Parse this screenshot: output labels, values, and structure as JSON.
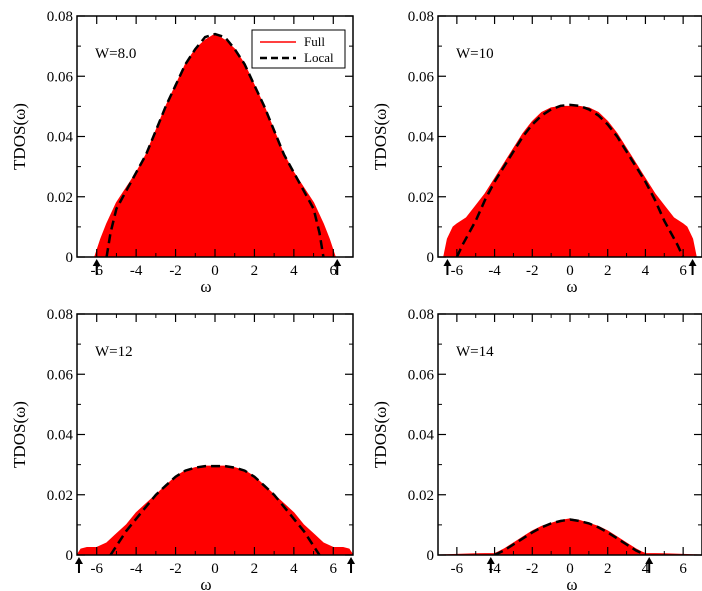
{
  "chart_data": [
    {
      "type": "area",
      "label": "W=8.0",
      "xlabel": "ω",
      "ylabel": "TDOS(ω)",
      "xlim": [
        -7,
        7
      ],
      "ylim": [
        0,
        0.08
      ],
      "xticks": [
        -6,
        -4,
        -2,
        0,
        2,
        4,
        6
      ],
      "yticks": [
        0,
        0.02,
        0.04,
        0.06,
        0.08
      ],
      "ytick_labels": [
        "0",
        "0.02",
        "0.04",
        "0.06",
        "0.08"
      ],
      "arrows_at": [
        -6.0,
        6.2
      ],
      "legend": {
        "position": "top-right",
        "entries": [
          "Full",
          "Local"
        ]
      },
      "series": [
        {
          "name": "Full",
          "style": "filled",
          "color": "#ff0000",
          "x": [
            -6.1,
            -5.8,
            -5.5,
            -5.0,
            -4.5,
            -4.0,
            -3.5,
            -3.0,
            -2.5,
            -2.0,
            -1.5,
            -1.0,
            -0.5,
            0.0,
            0.5,
            1.0,
            1.5,
            2.0,
            2.5,
            3.0,
            3.5,
            4.0,
            4.5,
            5.0,
            5.5,
            5.8,
            6.1
          ],
          "y": [
            0.0,
            0.006,
            0.011,
            0.018,
            0.023,
            0.028,
            0.034,
            0.042,
            0.05,
            0.057,
            0.064,
            0.069,
            0.072,
            0.074,
            0.072,
            0.069,
            0.064,
            0.057,
            0.05,
            0.042,
            0.034,
            0.028,
            0.023,
            0.018,
            0.011,
            0.006,
            0.0
          ]
        },
        {
          "name": "Local",
          "style": "dashed",
          "color": "#000000",
          "x": [
            -5.5,
            -5.3,
            -5.0,
            -4.5,
            -4.0,
            -3.5,
            -3.0,
            -2.5,
            -2.0,
            -1.5,
            -1.0,
            -0.5,
            0.0,
            0.5,
            1.0,
            1.5,
            2.0,
            2.5,
            3.0,
            3.5,
            4.0,
            4.5,
            5.0,
            5.3,
            5.5
          ],
          "y": [
            0.0,
            0.008,
            0.016,
            0.022,
            0.028,
            0.034,
            0.042,
            0.05,
            0.057,
            0.064,
            0.069,
            0.073,
            0.074,
            0.073,
            0.069,
            0.064,
            0.057,
            0.05,
            0.042,
            0.034,
            0.028,
            0.022,
            0.016,
            0.008,
            0.0
          ]
        }
      ]
    },
    {
      "type": "area",
      "label": "W=10",
      "xlabel": "ω",
      "ylabel": "TDOS(ω)",
      "xlim": [
        -7,
        7
      ],
      "ylim": [
        0,
        0.08
      ],
      "xticks": [
        -6,
        -4,
        -2,
        0,
        2,
        4,
        6
      ],
      "yticks": [
        0,
        0.02,
        0.04,
        0.06,
        0.08
      ],
      "ytick_labels": [
        "0",
        "0.02",
        "0.04",
        "0.06",
        "0.08"
      ],
      "arrows_at": [
        -6.5,
        6.5
      ],
      "series": [
        {
          "name": "Full",
          "style": "filled",
          "color": "#ff0000",
          "x": [
            -6.7,
            -6.5,
            -6.2,
            -6.0,
            -5.5,
            -5.0,
            -4.5,
            -4.0,
            -3.5,
            -3.0,
            -2.5,
            -2.0,
            -1.5,
            -1.0,
            -0.5,
            0.0,
            0.5,
            1.0,
            1.5,
            2.0,
            2.5,
            3.0,
            3.5,
            4.0,
            4.5,
            5.0,
            5.5,
            6.0,
            6.2,
            6.5,
            6.7
          ],
          "y": [
            0.0,
            0.006,
            0.01,
            0.011,
            0.013,
            0.017,
            0.021,
            0.026,
            0.031,
            0.036,
            0.041,
            0.045,
            0.048,
            0.0495,
            0.05,
            0.05,
            0.05,
            0.0495,
            0.048,
            0.045,
            0.041,
            0.036,
            0.031,
            0.026,
            0.021,
            0.017,
            0.013,
            0.011,
            0.01,
            0.006,
            0.0
          ]
        },
        {
          "name": "Local",
          "style": "dashed",
          "color": "#000000",
          "x": [
            -6.0,
            -5.7,
            -5.0,
            -4.5,
            -4.0,
            -3.5,
            -3.0,
            -2.5,
            -2.0,
            -1.5,
            -1.0,
            -0.5,
            0.0,
            0.5,
            1.0,
            1.5,
            2.0,
            2.5,
            3.0,
            3.5,
            4.0,
            4.5,
            5.0,
            5.7,
            6.0
          ],
          "y": [
            0.0,
            0.004,
            0.012,
            0.019,
            0.025,
            0.03,
            0.035,
            0.04,
            0.044,
            0.047,
            0.049,
            0.0502,
            0.0505,
            0.0502,
            0.049,
            0.047,
            0.044,
            0.04,
            0.035,
            0.03,
            0.025,
            0.019,
            0.012,
            0.004,
            0.0
          ]
        }
      ]
    },
    {
      "type": "area",
      "label": "W=12",
      "xlabel": "ω",
      "ylabel": "TDOS(ω)",
      "xlim": [
        -7,
        7
      ],
      "ylim": [
        0,
        0.08
      ],
      "xticks": [
        -6,
        -4,
        -2,
        0,
        2,
        4,
        6
      ],
      "yticks": [
        0,
        0.02,
        0.04,
        0.06,
        0.08
      ],
      "ytick_labels": [
        "0",
        "0.02",
        "0.04",
        "0.06",
        "0.08"
      ],
      "arrows_at": [
        -6.9,
        6.9
      ],
      "series": [
        {
          "name": "Full",
          "style": "filled",
          "color": "#ff0000",
          "x": [
            -7.0,
            -6.8,
            -6.5,
            -6.0,
            -5.5,
            -5.0,
            -4.5,
            -4.0,
            -3.5,
            -3.0,
            -2.5,
            -2.0,
            -1.5,
            -1.0,
            -0.5,
            0.0,
            0.5,
            1.0,
            1.5,
            2.0,
            2.5,
            3.0,
            3.5,
            4.0,
            4.5,
            5.0,
            5.5,
            6.0,
            6.5,
            6.8,
            7.0
          ],
          "y": [
            0.0,
            0.002,
            0.0025,
            0.0025,
            0.004,
            0.007,
            0.01,
            0.014,
            0.017,
            0.02,
            0.023,
            0.026,
            0.028,
            0.029,
            0.0295,
            0.0295,
            0.0295,
            0.029,
            0.028,
            0.026,
            0.023,
            0.02,
            0.017,
            0.014,
            0.01,
            0.007,
            0.004,
            0.0025,
            0.0025,
            0.002,
            0.0
          ]
        },
        {
          "name": "Local",
          "style": "dashed",
          "color": "#000000",
          "x": [
            -5.3,
            -5.0,
            -4.5,
            -4.0,
            -3.5,
            -3.0,
            -2.5,
            -2.0,
            -1.5,
            -1.0,
            -0.5,
            0.0,
            0.5,
            1.0,
            1.5,
            2.0,
            2.5,
            3.0,
            3.5,
            4.0,
            4.5,
            5.0,
            5.3
          ],
          "y": [
            0.0,
            0.003,
            0.008,
            0.012,
            0.016,
            0.02,
            0.023,
            0.026,
            0.028,
            0.029,
            0.0295,
            0.0295,
            0.0295,
            0.029,
            0.028,
            0.026,
            0.023,
            0.02,
            0.016,
            0.012,
            0.008,
            0.003,
            0.0
          ]
        }
      ]
    },
    {
      "type": "area",
      "label": "W=14",
      "xlabel": "ω",
      "ylabel": "TDOS(ω)",
      "xlim": [
        -7,
        7
      ],
      "ylim": [
        0,
        0.08
      ],
      "xticks": [
        -6,
        -4,
        -2,
        0,
        2,
        4,
        6
      ],
      "yticks": [
        0,
        0.02,
        0.04,
        0.06,
        0.08
      ],
      "ytick_labels": [
        "0",
        "0.02",
        "0.04",
        "0.06",
        "0.08"
      ],
      "arrows_at": [
        -4.2,
        4.2
      ],
      "series": [
        {
          "name": "Full",
          "style": "filled",
          "color": "#ff0000",
          "x": [
            -7.0,
            -5.0,
            -4.0,
            -3.8,
            -3.5,
            -3.0,
            -2.5,
            -2.0,
            -1.5,
            -1.0,
            -0.5,
            0.0,
            0.5,
            1.0,
            1.5,
            2.0,
            2.5,
            3.0,
            3.5,
            3.8,
            4.0,
            5.0,
            7.0
          ],
          "y": [
            0.0,
            0.0004,
            0.0005,
            0.001,
            0.002,
            0.004,
            0.006,
            0.008,
            0.0095,
            0.0105,
            0.0115,
            0.012,
            0.0115,
            0.0105,
            0.0095,
            0.008,
            0.006,
            0.004,
            0.002,
            0.001,
            0.0005,
            0.0004,
            0.0
          ]
        },
        {
          "name": "Local",
          "style": "dashed",
          "color": "#000000",
          "x": [
            -4.0,
            -3.5,
            -3.0,
            -2.5,
            -2.0,
            -1.5,
            -1.0,
            -0.5,
            0.0,
            0.5,
            1.0,
            1.5,
            2.0,
            2.5,
            3.0,
            3.5,
            4.0
          ],
          "y": [
            0.0,
            0.0015,
            0.0035,
            0.0055,
            0.0075,
            0.0092,
            0.0105,
            0.0113,
            0.0118,
            0.0113,
            0.0105,
            0.0092,
            0.0075,
            0.0055,
            0.0035,
            0.0015,
            0.0
          ]
        }
      ]
    }
  ]
}
